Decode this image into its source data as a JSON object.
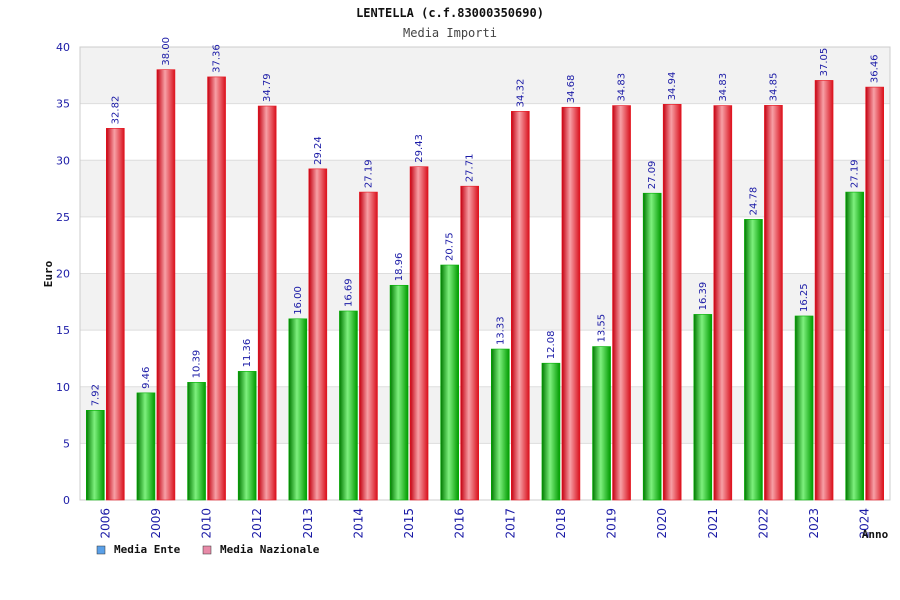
{
  "chart_data": {
    "type": "bar",
    "title": "LENTELLA (c.f.83000350690)",
    "subtitle": "Media Importi",
    "ylabel": "Euro",
    "xlabel": "Anno",
    "ylim": [
      0,
      40
    ],
    "yticks": [
      0,
      5,
      10,
      15,
      20,
      25,
      30,
      35,
      40
    ],
    "grid": true,
    "legend_position": "bottom-left",
    "categories": [
      "2006",
      "2009",
      "2010",
      "2012",
      "2013",
      "2014",
      "2015",
      "2016",
      "2017",
      "2018",
      "2019",
      "2020",
      "2021",
      "2022",
      "2023",
      "2024"
    ],
    "series": [
      {
        "name": "Media Ente",
        "values": [
          7.92,
          9.46,
          10.39,
          11.36,
          16.0,
          16.69,
          18.96,
          20.75,
          13.33,
          12.08,
          13.55,
          27.09,
          16.39,
          24.78,
          16.25,
          27.19
        ],
        "labels": [
          "7.92",
          "9.46",
          "10.39",
          "11.36",
          "16.00",
          "16.69",
          "18.96",
          "20.75",
          "13.33",
          "12.08",
          "13.55",
          "27.09",
          "16.39",
          "24.78",
          "16.25",
          "27.19"
        ]
      },
      {
        "name": "Media Nazionale",
        "values": [
          32.82,
          38.0,
          37.36,
          34.79,
          29.24,
          27.19,
          29.43,
          27.71,
          34.32,
          34.68,
          34.83,
          34.94,
          34.83,
          34.85,
          37.05,
          36.46
        ],
        "labels": [
          "32.82",
          "38.00",
          "37.36",
          "34.79",
          "29.24",
          "27.19",
          "29.43",
          "27.71",
          "34.32",
          "34.68",
          "34.83",
          "34.94",
          "34.83",
          "34.85",
          "37.05",
          "36.46"
        ]
      }
    ]
  },
  "colors": {
    "ente_bar": "#00b000",
    "ente_bar_light": "#7ef07e",
    "nazionale_bar": "#e8141e",
    "nazionale_bar_light": "#f7a0a6",
    "legend_ente": "#5aa0e8",
    "legend_nazionale": "#e88aa8",
    "grid_band": "#f2f2f2",
    "tick_text": "#1a1aa6"
  }
}
